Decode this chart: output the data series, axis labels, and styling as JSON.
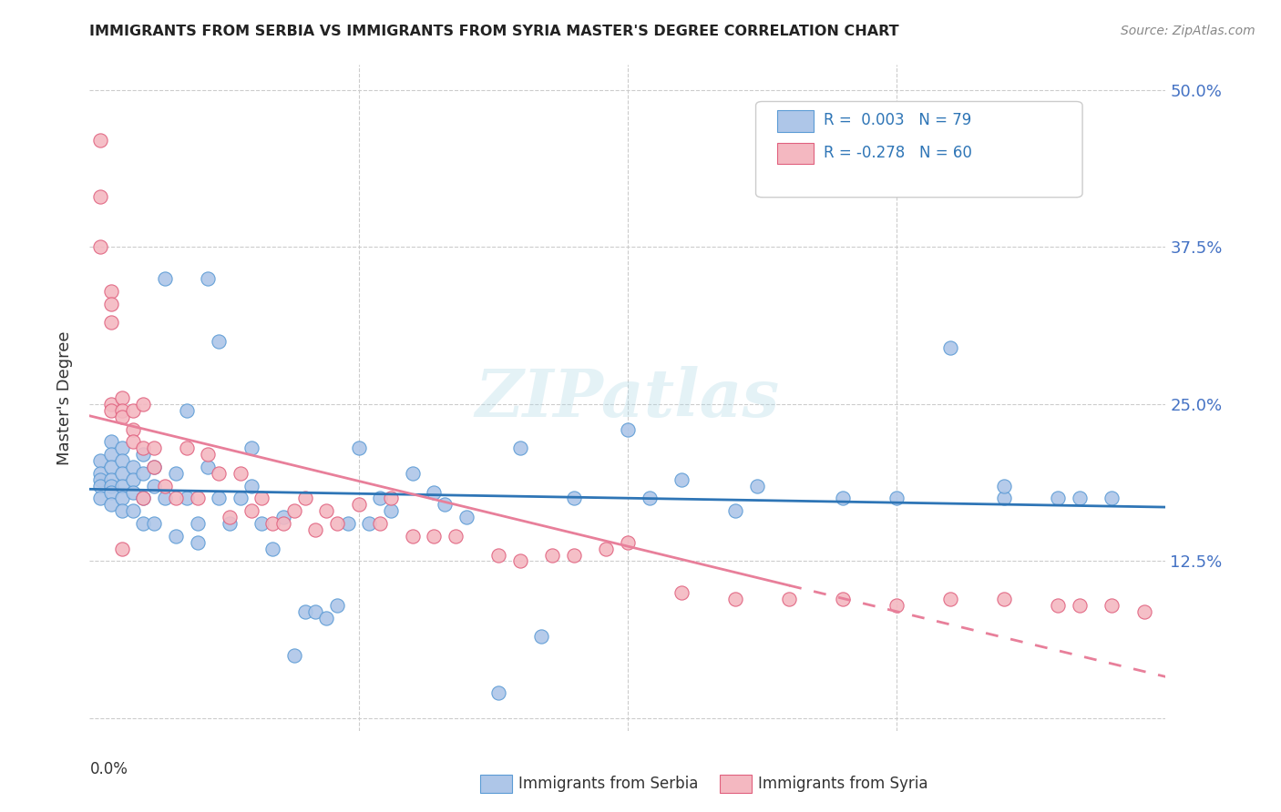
{
  "title": "IMMIGRANTS FROM SERBIA VS IMMIGRANTS FROM SYRIA MASTER'S DEGREE CORRELATION CHART",
  "source": "Source: ZipAtlas.com",
  "ylabel": "Master's Degree",
  "xlim": [
    0.0,
    0.1
  ],
  "ylim": [
    -0.01,
    0.52
  ],
  "yticks": [
    0.0,
    0.125,
    0.25,
    0.375,
    0.5
  ],
  "ytick_labels": [
    "",
    "12.5%",
    "25.0%",
    "37.5%",
    "50.0%"
  ],
  "serbia_color": "#aec6e8",
  "serbia_edge": "#5b9bd5",
  "syria_color": "#f4b8c1",
  "syria_edge": "#e0607e",
  "serbia_line_color": "#2e75b6",
  "syria_line_color": "#e87f9a",
  "legend_R_serbia": "0.003",
  "legend_N_serbia": "79",
  "legend_R_syria": "-0.278",
  "legend_N_syria": "60",
  "serbia_x": [
    0.001,
    0.001,
    0.001,
    0.001,
    0.001,
    0.002,
    0.002,
    0.002,
    0.002,
    0.002,
    0.002,
    0.002,
    0.003,
    0.003,
    0.003,
    0.003,
    0.003,
    0.003,
    0.004,
    0.004,
    0.004,
    0.004,
    0.005,
    0.005,
    0.005,
    0.005,
    0.006,
    0.006,
    0.006,
    0.007,
    0.007,
    0.008,
    0.008,
    0.009,
    0.009,
    0.01,
    0.01,
    0.011,
    0.011,
    0.012,
    0.012,
    0.013,
    0.014,
    0.015,
    0.015,
    0.016,
    0.017,
    0.018,
    0.019,
    0.02,
    0.021,
    0.022,
    0.023,
    0.024,
    0.025,
    0.026,
    0.027,
    0.028,
    0.03,
    0.032,
    0.033,
    0.035,
    0.038,
    0.04,
    0.042,
    0.045,
    0.05,
    0.052,
    0.055,
    0.06,
    0.07,
    0.075,
    0.08,
    0.085,
    0.09,
    0.092,
    0.095,
    0.085,
    0.062
  ],
  "serbia_y": [
    0.205,
    0.195,
    0.19,
    0.185,
    0.175,
    0.22,
    0.21,
    0.2,
    0.19,
    0.185,
    0.18,
    0.17,
    0.215,
    0.205,
    0.195,
    0.185,
    0.175,
    0.165,
    0.2,
    0.19,
    0.18,
    0.165,
    0.21,
    0.195,
    0.175,
    0.155,
    0.2,
    0.185,
    0.155,
    0.35,
    0.175,
    0.195,
    0.145,
    0.245,
    0.175,
    0.155,
    0.14,
    0.35,
    0.2,
    0.3,
    0.175,
    0.155,
    0.175,
    0.215,
    0.185,
    0.155,
    0.135,
    0.16,
    0.05,
    0.085,
    0.085,
    0.08,
    0.09,
    0.155,
    0.215,
    0.155,
    0.175,
    0.165,
    0.195,
    0.18,
    0.17,
    0.16,
    0.02,
    0.215,
    0.065,
    0.175,
    0.23,
    0.175,
    0.19,
    0.165,
    0.175,
    0.175,
    0.295,
    0.175,
    0.175,
    0.175,
    0.175,
    0.185,
    0.185
  ],
  "syria_x": [
    0.001,
    0.001,
    0.001,
    0.002,
    0.002,
    0.002,
    0.002,
    0.002,
    0.003,
    0.003,
    0.003,
    0.003,
    0.004,
    0.004,
    0.004,
    0.005,
    0.005,
    0.005,
    0.006,
    0.006,
    0.007,
    0.008,
    0.009,
    0.01,
    0.011,
    0.012,
    0.013,
    0.014,
    0.015,
    0.016,
    0.017,
    0.018,
    0.019,
    0.02,
    0.021,
    0.022,
    0.023,
    0.025,
    0.027,
    0.028,
    0.03,
    0.032,
    0.034,
    0.038,
    0.04,
    0.043,
    0.045,
    0.048,
    0.05,
    0.055,
    0.06,
    0.065,
    0.07,
    0.075,
    0.08,
    0.085,
    0.09,
    0.092,
    0.095,
    0.098
  ],
  "syria_y": [
    0.46,
    0.415,
    0.375,
    0.34,
    0.33,
    0.315,
    0.25,
    0.245,
    0.255,
    0.245,
    0.24,
    0.135,
    0.245,
    0.23,
    0.22,
    0.25,
    0.215,
    0.175,
    0.215,
    0.2,
    0.185,
    0.175,
    0.215,
    0.175,
    0.21,
    0.195,
    0.16,
    0.195,
    0.165,
    0.175,
    0.155,
    0.155,
    0.165,
    0.175,
    0.15,
    0.165,
    0.155,
    0.17,
    0.155,
    0.175,
    0.145,
    0.145,
    0.145,
    0.13,
    0.125,
    0.13,
    0.13,
    0.135,
    0.14,
    0.1,
    0.095,
    0.095,
    0.095,
    0.09,
    0.095,
    0.095,
    0.09,
    0.09,
    0.09,
    0.085
  ]
}
